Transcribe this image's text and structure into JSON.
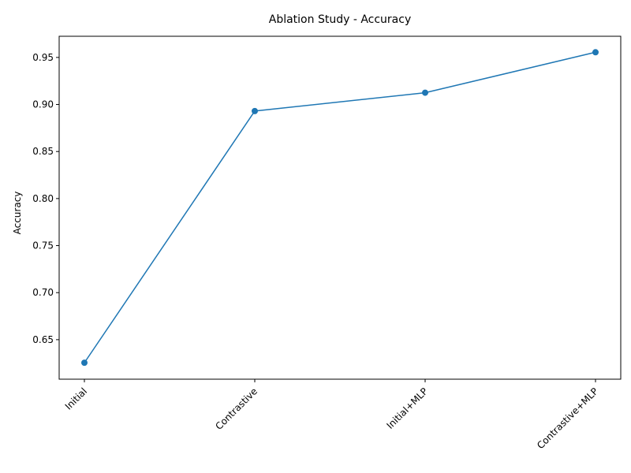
{
  "chart_data": {
    "type": "line",
    "title": "Ablation Study - Accuracy",
    "xlabel": "",
    "ylabel": "Accuracy",
    "categories": [
      "Initial",
      "Contrastive",
      "Initial+MLP",
      "Contrastive+MLP"
    ],
    "series": [
      {
        "values": [
          0.6255,
          0.893,
          0.9125,
          0.9555
        ],
        "color": "#1f77b4",
        "marker": "circle"
      }
    ],
    "ylim": [
      0.608,
      0.9725
    ],
    "yticks": [
      "0.65",
      "0.70",
      "0.75",
      "0.80",
      "0.85",
      "0.90",
      "0.95"
    ],
    "grid": false,
    "legend": "none"
  }
}
